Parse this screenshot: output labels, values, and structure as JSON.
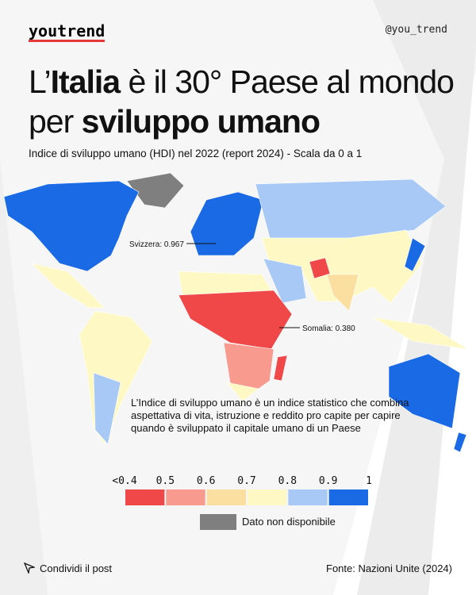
{
  "header": {
    "brand": "youtrend",
    "handle": "@you_trend"
  },
  "title": {
    "pre": "L’",
    "bold1": "Italia",
    "mid": " è il 30° Paese al mondo per ",
    "bold2": "sviluppo umano"
  },
  "subtitle": "Indice di sviluppo umano (HDI) nel 2022 (report 2024) - Scala da 0 a 1",
  "annotations": [
    {
      "label": "Svizzera: 0.967"
    },
    {
      "label": "Somalia: 0.380"
    }
  ],
  "note": "L’Indice di sviluppo umano è un indice statistico che combina aspettativa di vita, istruzione e reddito pro capite per capire quando è sviluppato il capitale umano di un Paese",
  "legend": {
    "ticks": [
      "<0.4",
      "0.5",
      "0.6",
      "0.7",
      "0.8",
      "0.9",
      "1"
    ],
    "colors": [
      "#f04848",
      "#f99a8e",
      "#fbdfa0",
      "#fdf8c4",
      "#a8c8f5",
      "#1a6ae6"
    ],
    "missing_label": "Dato non disponibile",
    "missing_color": "#7f7f7f"
  },
  "footer": {
    "share": "Condividi il post",
    "source": "Fonte: Nazioni Unite (2024)"
  }
}
